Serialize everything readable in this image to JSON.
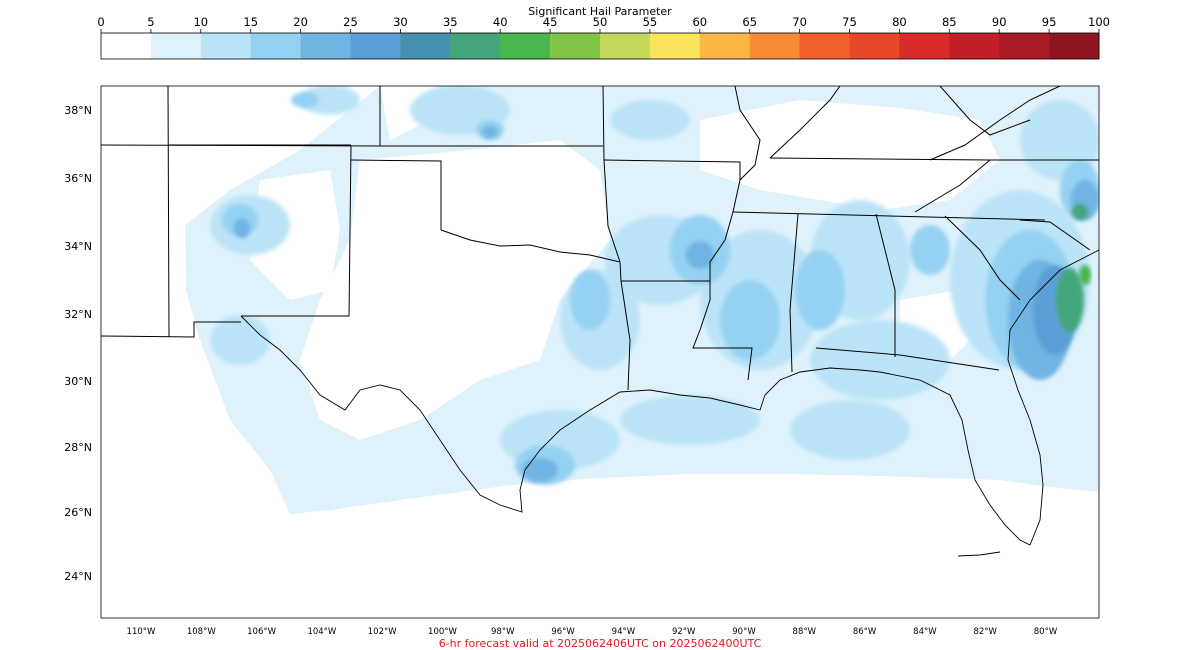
{
  "colorbar": {
    "title": "Significant Hail Parameter",
    "ticks": [
      "0",
      "5",
      "10",
      "15",
      "20",
      "25",
      "30",
      "35",
      "40",
      "45",
      "50",
      "55",
      "60",
      "65",
      "70",
      "75",
      "80",
      "85",
      "90",
      "95",
      "100"
    ],
    "colors": [
      "#ffffff",
      "#dff2fc",
      "#bce4f8",
      "#95d1f2",
      "#70b4e3",
      "#5b9fd8",
      "#4690b0",
      "#44a57a",
      "#48b54f",
      "#80c546",
      "#c2d95a",
      "#fce45a",
      "#fbb646",
      "#f78c34",
      "#f15f2b",
      "#e64829",
      "#d92b2a",
      "#c21f28",
      "#a91b25",
      "#8f1620"
    ]
  },
  "map": {
    "lat_labels": [
      "38°N",
      "36°N",
      "34°N",
      "32°N",
      "30°N",
      "28°N",
      "26°N",
      "24°N"
    ],
    "lon_labels": [
      "110°W",
      "108°W",
      "106°W",
      "104°W",
      "102°W",
      "100°W",
      "98°W",
      "96°W",
      "94°W",
      "92°W",
      "90°W",
      "88°W",
      "86°W",
      "84°W",
      "82°W",
      "80°W"
    ]
  },
  "footer": {
    "caption": "6-hr forecast valid at 2025062406UTC on 2025062400UTC"
  }
}
